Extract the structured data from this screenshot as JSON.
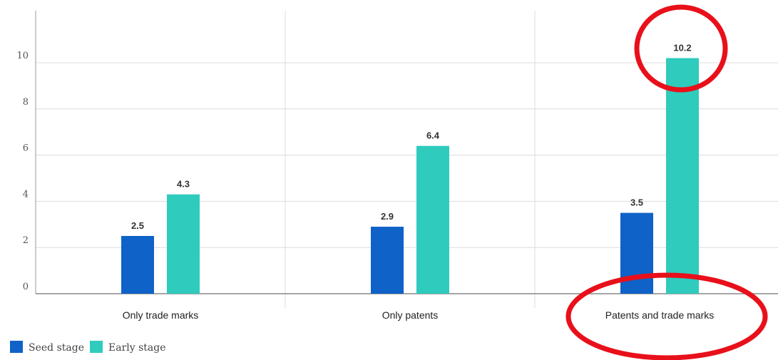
{
  "chart_data": {
    "type": "bar",
    "categories": [
      "Only trade marks",
      "Only patents",
      "Patents and trade marks"
    ],
    "series": [
      {
        "name": "Seed stage",
        "values": [
          2.5,
          2.9,
          3.5
        ],
        "color": "#0f62c8"
      },
      {
        "name": "Early stage",
        "values": [
          4.3,
          6.4,
          10.2
        ],
        "color": "#2fcbbd"
      }
    ],
    "data_labels": [
      [
        "2.5",
        "2.9",
        "3.5"
      ],
      [
        "4.3",
        "6.4",
        "10.2"
      ]
    ],
    "yticks": [
      "0",
      "2",
      "4",
      "6",
      "8",
      "10"
    ],
    "ylim": [
      0,
      12
    ],
    "grid": true,
    "legend_position": "bottom-left",
    "annotations": [
      {
        "type": "ellipse",
        "color": "#e8101a",
        "target": "10.2"
      },
      {
        "type": "ellipse",
        "color": "#e8101a",
        "target": "Patents and trade marks"
      }
    ]
  }
}
